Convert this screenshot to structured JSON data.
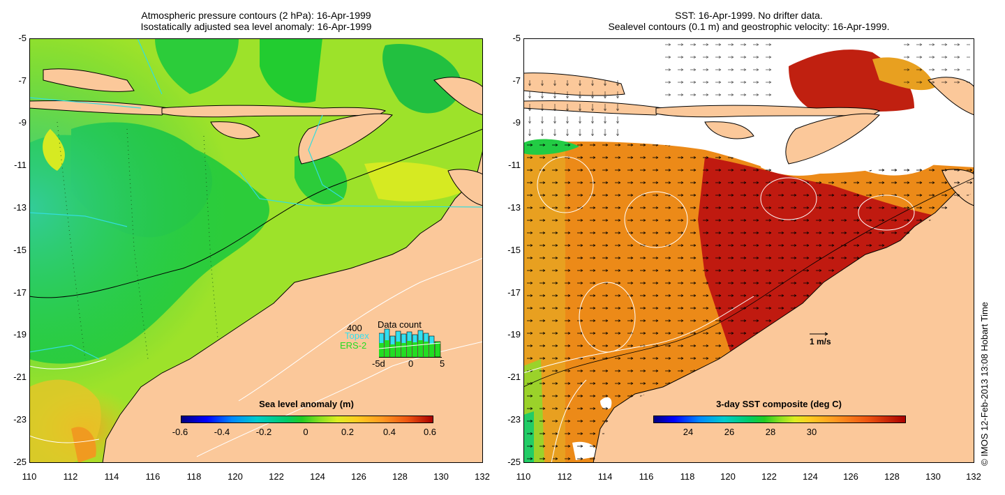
{
  "left_panel": {
    "title_line1": "Atmospheric pressure contours (2 hPa): 16-Apr-1999",
    "title_line2": "Isostatically adjusted sea level anomaly: 16-Apr-1999",
    "y_ticks": [
      "-5",
      "-7",
      "-9",
      "-11",
      "-13",
      "-15",
      "-17",
      "-19",
      "-21",
      "-23",
      "-25"
    ],
    "x_ticks": [
      "110",
      "112",
      "114",
      "116",
      "118",
      "120",
      "122",
      "124",
      "126",
      "128",
      "130",
      "132"
    ],
    "colorbar": {
      "title": "Sea level anomaly (m)",
      "ticks": [
        "-0.6",
        "-0.4",
        "-0.2",
        "0",
        "0.2",
        "0.4",
        "0.6"
      ]
    },
    "data_count": {
      "label": "Data count",
      "max_label": "400",
      "topex_label": "Topex",
      "ers_label": "ERS-2",
      "x_labels": [
        "-5d",
        "0",
        "5"
      ],
      "topex_color": "#33e0f0",
      "ers_color": "#22dd22"
    },
    "colors": {
      "land": "#fbc89a",
      "sea_mid": "#22cc22",
      "sea_high": "#bbee22",
      "trackline": "#33dddd"
    }
  },
  "right_panel": {
    "title_line1": "SST: 16-Apr-1999. No drifter data.",
    "title_line2": "Sealevel contours (0.1 m) and geostrophic velocity: 16-Apr-1999.",
    "y_ticks": [
      "-5",
      "-7",
      "-9",
      "-11",
      "-13",
      "-15",
      "-17",
      "-19",
      "-21",
      "-23",
      "-25"
    ],
    "x_ticks": [
      "110",
      "112",
      "114",
      "116",
      "118",
      "120",
      "122",
      "124",
      "126",
      "128",
      "130",
      "132"
    ],
    "velocity_scale_label": "1 m/s",
    "colorbar": {
      "title": "3-day SST composite (deg C)",
      "ticks": [
        "24",
        "26",
        "28",
        "30"
      ]
    },
    "colors": {
      "land": "#fbc89a",
      "sst_warm": "#e87a10",
      "sst_hot": "#b81010",
      "cloud": "#ffffff"
    }
  },
  "credit": "© IMOS 12-Feb-2013 13:08 Hobart Time"
}
